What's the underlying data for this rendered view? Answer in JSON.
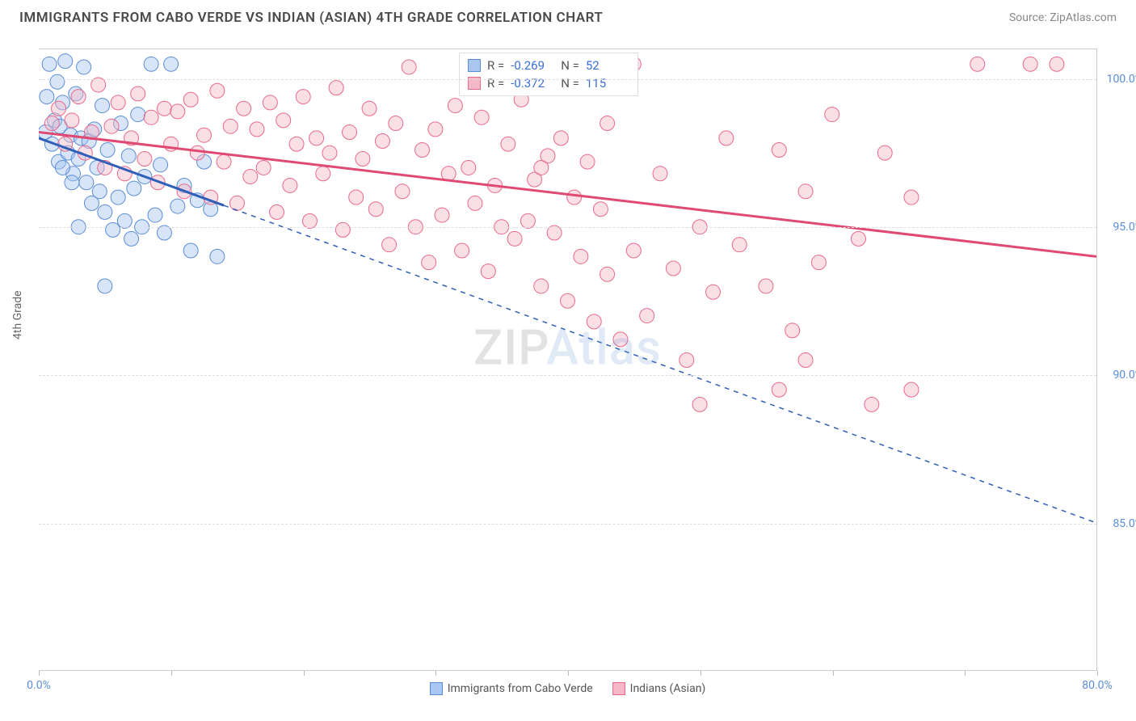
{
  "title": "IMMIGRANTS FROM CABO VERDE VS INDIAN (ASIAN) 4TH GRADE CORRELATION CHART",
  "source": "Source: ZipAtlas.com",
  "ylabel": "4th Grade",
  "watermark_zip": "ZIP",
  "watermark_atlas": "Atlas",
  "chart": {
    "type": "scatter",
    "xlim": [
      0,
      80
    ],
    "ylim": [
      80,
      101
    ],
    "yticks": [
      85,
      90,
      95,
      100
    ],
    "ytick_labels": [
      "85.0%",
      "90.0%",
      "95.0%",
      "100.0%"
    ],
    "xticks": [
      0,
      10,
      20,
      30,
      40,
      50,
      60,
      70,
      80
    ],
    "xtick_labels": [
      "0.0%",
      "",
      "",
      "",
      "",
      "",
      "",
      "",
      "80.0%"
    ],
    "grid_color": "#dddddd",
    "background_color": "#ffffff",
    "marker_radius": 9,
    "marker_opacity": 0.45,
    "series": [
      {
        "name": "Immigrants from Cabo Verde",
        "color_fill": "#a8c6f0",
        "color_stroke": "#5b8dd6",
        "line_color": "#2f5fb8",
        "r_value": "-0.269",
        "n_value": "52",
        "regression": {
          "x1": 0,
          "y1": 98.0,
          "x2": 80,
          "y2": 85.0,
          "solid_until_x": 14
        },
        "points": [
          [
            0.5,
            98.2
          ],
          [
            0.6,
            99.4
          ],
          [
            0.8,
            100.5
          ],
          [
            1.0,
            97.8
          ],
          [
            1.2,
            98.6
          ],
          [
            1.4,
            99.9
          ],
          [
            1.5,
            97.2
          ],
          [
            1.6,
            98.4
          ],
          [
            1.8,
            99.2
          ],
          [
            2.0,
            100.6
          ],
          [
            2.2,
            97.5
          ],
          [
            2.4,
            98.1
          ],
          [
            2.6,
            96.8
          ],
          [
            2.8,
            99.5
          ],
          [
            3.0,
            97.3
          ],
          [
            3.2,
            98.0
          ],
          [
            3.4,
            100.4
          ],
          [
            3.6,
            96.5
          ],
          [
            3.8,
            97.9
          ],
          [
            4.0,
            95.8
          ],
          [
            4.2,
            98.3
          ],
          [
            4.4,
            97.0
          ],
          [
            4.6,
            96.2
          ],
          [
            4.8,
            99.1
          ],
          [
            5.0,
            95.5
          ],
          [
            5.2,
            97.6
          ],
          [
            5.6,
            94.9
          ],
          [
            6.0,
            96.0
          ],
          [
            6.2,
            98.5
          ],
          [
            6.5,
            95.2
          ],
          [
            6.8,
            97.4
          ],
          [
            7.0,
            94.6
          ],
          [
            7.2,
            96.3
          ],
          [
            7.5,
            98.8
          ],
          [
            7.8,
            95.0
          ],
          [
            8.0,
            96.7
          ],
          [
            8.5,
            100.5
          ],
          [
            8.8,
            95.4
          ],
          [
            9.2,
            97.1
          ],
          [
            9.5,
            94.8
          ],
          [
            10.0,
            100.5
          ],
          [
            10.5,
            95.7
          ],
          [
            11.0,
            96.4
          ],
          [
            11.5,
            94.2
          ],
          [
            12.0,
            95.9
          ],
          [
            12.5,
            97.2
          ],
          [
            13.0,
            95.6
          ],
          [
            13.5,
            94.0
          ],
          [
            5.0,
            93.0
          ],
          [
            3.0,
            95.0
          ],
          [
            2.5,
            96.5
          ],
          [
            1.8,
            97.0
          ]
        ]
      },
      {
        "name": "Indians (Asian)",
        "color_fill": "#f5b8c8",
        "color_stroke": "#e86a8a",
        "line_color": "#e04a72",
        "r_value": "-0.372",
        "n_value": "115",
        "regression": {
          "x1": 0,
          "y1": 98.2,
          "x2": 80,
          "y2": 94.0,
          "solid_until_x": 80
        },
        "points": [
          [
            1.0,
            98.5
          ],
          [
            1.5,
            99.0
          ],
          [
            2.0,
            97.8
          ],
          [
            2.5,
            98.6
          ],
          [
            3.0,
            99.4
          ],
          [
            3.5,
            97.5
          ],
          [
            4.0,
            98.2
          ],
          [
            4.5,
            99.8
          ],
          [
            5.0,
            97.0
          ],
          [
            5.5,
            98.4
          ],
          [
            6.0,
            99.2
          ],
          [
            6.5,
            96.8
          ],
          [
            7.0,
            98.0
          ],
          [
            7.5,
            99.5
          ],
          [
            8.0,
            97.3
          ],
          [
            8.5,
            98.7
          ],
          [
            9.0,
            96.5
          ],
          [
            9.5,
            99.0
          ],
          [
            10.0,
            97.8
          ],
          [
            10.5,
            98.9
          ],
          [
            11.0,
            96.2
          ],
          [
            11.5,
            99.3
          ],
          [
            12.0,
            97.5
          ],
          [
            12.5,
            98.1
          ],
          [
            13.0,
            96.0
          ],
          [
            13.5,
            99.6
          ],
          [
            14.0,
            97.2
          ],
          [
            14.5,
            98.4
          ],
          [
            15.0,
            95.8
          ],
          [
            15.5,
            99.0
          ],
          [
            16.0,
            96.7
          ],
          [
            16.5,
            98.3
          ],
          [
            17.0,
            97.0
          ],
          [
            17.5,
            99.2
          ],
          [
            18.0,
            95.5
          ],
          [
            18.5,
            98.6
          ],
          [
            19.0,
            96.4
          ],
          [
            19.5,
            97.8
          ],
          [
            20.0,
            99.4
          ],
          [
            20.5,
            95.2
          ],
          [
            21.0,
            98.0
          ],
          [
            21.5,
            96.8
          ],
          [
            22.0,
            97.5
          ],
          [
            22.5,
            99.7
          ],
          [
            23.0,
            94.9
          ],
          [
            23.5,
            98.2
          ],
          [
            24.0,
            96.0
          ],
          [
            24.5,
            97.3
          ],
          [
            25.0,
            99.0
          ],
          [
            25.5,
            95.6
          ],
          [
            26.0,
            97.9
          ],
          [
            26.5,
            94.4
          ],
          [
            27.0,
            98.5
          ],
          [
            27.5,
            96.2
          ],
          [
            28.0,
            100.4
          ],
          [
            28.5,
            95.0
          ],
          [
            29.0,
            97.6
          ],
          [
            29.5,
            93.8
          ],
          [
            30.0,
            98.3
          ],
          [
            30.5,
            95.4
          ],
          [
            31.0,
            96.8
          ],
          [
            31.5,
            99.1
          ],
          [
            32.0,
            94.2
          ],
          [
            32.5,
            97.0
          ],
          [
            33.0,
            95.8
          ],
          [
            33.5,
            98.7
          ],
          [
            34.0,
            93.5
          ],
          [
            34.5,
            96.4
          ],
          [
            35.0,
            95.0
          ],
          [
            35.5,
            97.8
          ],
          [
            36.0,
            94.6
          ],
          [
            36.5,
            99.3
          ],
          [
            37.0,
            95.2
          ],
          [
            37.5,
            96.6
          ],
          [
            38.0,
            93.0
          ],
          [
            38.5,
            97.4
          ],
          [
            39.0,
            94.8
          ],
          [
            39.5,
            98.0
          ],
          [
            40.0,
            92.5
          ],
          [
            40.5,
            96.0
          ],
          [
            41.0,
            94.0
          ],
          [
            41.5,
            97.2
          ],
          [
            42.0,
            91.8
          ],
          [
            42.5,
            95.6
          ],
          [
            43.0,
            93.4
          ],
          [
            44.0,
            91.2
          ],
          [
            45.0,
            94.2
          ],
          [
            46.0,
            92.0
          ],
          [
            47.0,
            96.8
          ],
          [
            48.0,
            93.6
          ],
          [
            49.0,
            90.5
          ],
          [
            50.0,
            95.0
          ],
          [
            51.0,
            92.8
          ],
          [
            52.0,
            98.0
          ],
          [
            53.0,
            94.4
          ],
          [
            45.0,
            100.5
          ],
          [
            55.0,
            93.0
          ],
          [
            56.0,
            97.6
          ],
          [
            57.0,
            91.5
          ],
          [
            58.0,
            96.2
          ],
          [
            59.0,
            93.8
          ],
          [
            60.0,
            98.8
          ],
          [
            38.0,
            97.0
          ],
          [
            62.0,
            94.6
          ],
          [
            50.0,
            89.0
          ],
          [
            43.0,
            98.5
          ],
          [
            56.0,
            89.5
          ],
          [
            66.0,
            96.0
          ],
          [
            58.0,
            90.5
          ],
          [
            63.0,
            89.0
          ],
          [
            66.0,
            89.5
          ],
          [
            64.0,
            97.5
          ],
          [
            71.0,
            100.5
          ],
          [
            75.0,
            100.5
          ],
          [
            77.0,
            100.5
          ]
        ]
      }
    ],
    "legend": {
      "items": [
        {
          "label": "Immigrants from Cabo Verde",
          "fill": "#a8c6f0",
          "stroke": "#5b8dd6"
        },
        {
          "label": "Indians (Asian)",
          "fill": "#f5b8c8",
          "stroke": "#e86a8a"
        }
      ]
    },
    "stats_box": {
      "r_label": "R =",
      "n_label": "N ="
    }
  }
}
